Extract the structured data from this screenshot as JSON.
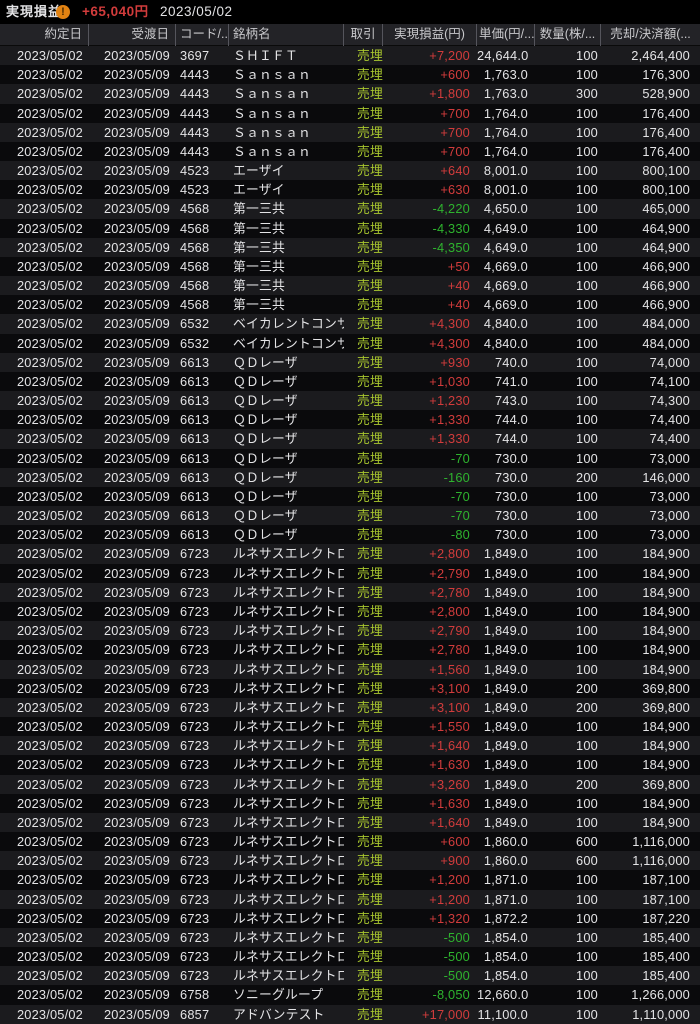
{
  "topbar": {
    "title": "実現損益",
    "warning_icon": "exclamation-circle-icon",
    "warning_glyph": "!",
    "total_pl": "+65,040円",
    "date": "2023/05/02"
  },
  "colors": {
    "positive": "#d23c3c",
    "negative": "#2eb32e",
    "trade_label": "#a8c62e",
    "warning": "#e28312",
    "header_bg": "#232327",
    "row_odd": "#1b1b1e",
    "row_even": "#0a0a0c"
  },
  "table": {
    "columns": [
      {
        "key": "trade_date",
        "label": "約定日"
      },
      {
        "key": "settle_date",
        "label": "受渡日"
      },
      {
        "key": "code",
        "label": "コード/..."
      },
      {
        "key": "name",
        "label": "銘柄名"
      },
      {
        "key": "trade",
        "label": "取引"
      },
      {
        "key": "realized_pl",
        "label": "実現損益(円)"
      },
      {
        "key": "unit_price",
        "label": "単価(円/..."
      },
      {
        "key": "quantity",
        "label": "数量(株/..."
      },
      {
        "key": "amount",
        "label": "売却/決済額(..."
      }
    ],
    "rows": [
      [
        "2023/05/02",
        "2023/05/09",
        "3697",
        "ＳＨＩＦＴ",
        "売埋",
        "+7,200",
        "24,644.0",
        "100",
        "2,464,400"
      ],
      [
        "2023/05/02",
        "2023/05/09",
        "4443",
        "Ｓａｎｓａｎ",
        "売埋",
        "+600",
        "1,763.0",
        "100",
        "176,300"
      ],
      [
        "2023/05/02",
        "2023/05/09",
        "4443",
        "Ｓａｎｓａｎ",
        "売埋",
        "+1,800",
        "1,763.0",
        "300",
        "528,900"
      ],
      [
        "2023/05/02",
        "2023/05/09",
        "4443",
        "Ｓａｎｓａｎ",
        "売埋",
        "+700",
        "1,764.0",
        "100",
        "176,400"
      ],
      [
        "2023/05/02",
        "2023/05/09",
        "4443",
        "Ｓａｎｓａｎ",
        "売埋",
        "+700",
        "1,764.0",
        "100",
        "176,400"
      ],
      [
        "2023/05/02",
        "2023/05/09",
        "4443",
        "Ｓａｎｓａｎ",
        "売埋",
        "+700",
        "1,764.0",
        "100",
        "176,400"
      ],
      [
        "2023/05/02",
        "2023/05/09",
        "4523",
        "エーザイ",
        "売埋",
        "+640",
        "8,001.0",
        "100",
        "800,100"
      ],
      [
        "2023/05/02",
        "2023/05/09",
        "4523",
        "エーザイ",
        "売埋",
        "+630",
        "8,001.0",
        "100",
        "800,100"
      ],
      [
        "2023/05/02",
        "2023/05/09",
        "4568",
        "第一三共",
        "売埋",
        "-4,220",
        "4,650.0",
        "100",
        "465,000"
      ],
      [
        "2023/05/02",
        "2023/05/09",
        "4568",
        "第一三共",
        "売埋",
        "-4,330",
        "4,649.0",
        "100",
        "464,900"
      ],
      [
        "2023/05/02",
        "2023/05/09",
        "4568",
        "第一三共",
        "売埋",
        "-4,350",
        "4,649.0",
        "100",
        "464,900"
      ],
      [
        "2023/05/02",
        "2023/05/09",
        "4568",
        "第一三共",
        "売埋",
        "+50",
        "4,669.0",
        "100",
        "466,900"
      ],
      [
        "2023/05/02",
        "2023/05/09",
        "4568",
        "第一三共",
        "売埋",
        "+40",
        "4,669.0",
        "100",
        "466,900"
      ],
      [
        "2023/05/02",
        "2023/05/09",
        "4568",
        "第一三共",
        "売埋",
        "+40",
        "4,669.0",
        "100",
        "466,900"
      ],
      [
        "2023/05/02",
        "2023/05/09",
        "6532",
        "ベイカレントコンサルティ...",
        "売埋",
        "+4,300",
        "4,840.0",
        "100",
        "484,000"
      ],
      [
        "2023/05/02",
        "2023/05/09",
        "6532",
        "ベイカレントコンサルティ...",
        "売埋",
        "+4,300",
        "4,840.0",
        "100",
        "484,000"
      ],
      [
        "2023/05/02",
        "2023/05/09",
        "6613",
        "ＱＤレーザ",
        "売埋",
        "+930",
        "740.0",
        "100",
        "74,000"
      ],
      [
        "2023/05/02",
        "2023/05/09",
        "6613",
        "ＱＤレーザ",
        "売埋",
        "+1,030",
        "741.0",
        "100",
        "74,100"
      ],
      [
        "2023/05/02",
        "2023/05/09",
        "6613",
        "ＱＤレーザ",
        "売埋",
        "+1,230",
        "743.0",
        "100",
        "74,300"
      ],
      [
        "2023/05/02",
        "2023/05/09",
        "6613",
        "ＱＤレーザ",
        "売埋",
        "+1,330",
        "744.0",
        "100",
        "74,400"
      ],
      [
        "2023/05/02",
        "2023/05/09",
        "6613",
        "ＱＤレーザ",
        "売埋",
        "+1,330",
        "744.0",
        "100",
        "74,400"
      ],
      [
        "2023/05/02",
        "2023/05/09",
        "6613",
        "ＱＤレーザ",
        "売埋",
        "-70",
        "730.0",
        "100",
        "73,000"
      ],
      [
        "2023/05/02",
        "2023/05/09",
        "6613",
        "ＱＤレーザ",
        "売埋",
        "-160",
        "730.0",
        "200",
        "146,000"
      ],
      [
        "2023/05/02",
        "2023/05/09",
        "6613",
        "ＱＤレーザ",
        "売埋",
        "-70",
        "730.0",
        "100",
        "73,000"
      ],
      [
        "2023/05/02",
        "2023/05/09",
        "6613",
        "ＱＤレーザ",
        "売埋",
        "-70",
        "730.0",
        "100",
        "73,000"
      ],
      [
        "2023/05/02",
        "2023/05/09",
        "6613",
        "ＱＤレーザ",
        "売埋",
        "-80",
        "730.0",
        "100",
        "73,000"
      ],
      [
        "2023/05/02",
        "2023/05/09",
        "6723",
        "ルネサスエレクトロニクス",
        "売埋",
        "+2,800",
        "1,849.0",
        "100",
        "184,900"
      ],
      [
        "2023/05/02",
        "2023/05/09",
        "6723",
        "ルネサスエレクトロニクス",
        "売埋",
        "+2,790",
        "1,849.0",
        "100",
        "184,900"
      ],
      [
        "2023/05/02",
        "2023/05/09",
        "6723",
        "ルネサスエレクトロニクス",
        "売埋",
        "+2,780",
        "1,849.0",
        "100",
        "184,900"
      ],
      [
        "2023/05/02",
        "2023/05/09",
        "6723",
        "ルネサスエレクトロニクス",
        "売埋",
        "+2,800",
        "1,849.0",
        "100",
        "184,900"
      ],
      [
        "2023/05/02",
        "2023/05/09",
        "6723",
        "ルネサスエレクトロニクス",
        "売埋",
        "+2,790",
        "1,849.0",
        "100",
        "184,900"
      ],
      [
        "2023/05/02",
        "2023/05/09",
        "6723",
        "ルネサスエレクトロニクス",
        "売埋",
        "+2,780",
        "1,849.0",
        "100",
        "184,900"
      ],
      [
        "2023/05/02",
        "2023/05/09",
        "6723",
        "ルネサスエレクトロニクス",
        "売埋",
        "+1,560",
        "1,849.0",
        "100",
        "184,900"
      ],
      [
        "2023/05/02",
        "2023/05/09",
        "6723",
        "ルネサスエレクトロニクス",
        "売埋",
        "+3,100",
        "1,849.0",
        "200",
        "369,800"
      ],
      [
        "2023/05/02",
        "2023/05/09",
        "6723",
        "ルネサスエレクトロニクス",
        "売埋",
        "+3,100",
        "1,849.0",
        "200",
        "369,800"
      ],
      [
        "2023/05/02",
        "2023/05/09",
        "6723",
        "ルネサスエレクトロニクス",
        "売埋",
        "+1,550",
        "1,849.0",
        "100",
        "184,900"
      ],
      [
        "2023/05/02",
        "2023/05/09",
        "6723",
        "ルネサスエレクトロニクス",
        "売埋",
        "+1,640",
        "1,849.0",
        "100",
        "184,900"
      ],
      [
        "2023/05/02",
        "2023/05/09",
        "6723",
        "ルネサスエレクトロニクス",
        "売埋",
        "+1,630",
        "1,849.0",
        "100",
        "184,900"
      ],
      [
        "2023/05/02",
        "2023/05/09",
        "6723",
        "ルネサスエレクトロニクス",
        "売埋",
        "+3,260",
        "1,849.0",
        "200",
        "369,800"
      ],
      [
        "2023/05/02",
        "2023/05/09",
        "6723",
        "ルネサスエレクトロニクス",
        "売埋",
        "+1,630",
        "1,849.0",
        "100",
        "184,900"
      ],
      [
        "2023/05/02",
        "2023/05/09",
        "6723",
        "ルネサスエレクトロニクス",
        "売埋",
        "+1,640",
        "1,849.0",
        "100",
        "184,900"
      ],
      [
        "2023/05/02",
        "2023/05/09",
        "6723",
        "ルネサスエレクトロニクス",
        "売埋",
        "+600",
        "1,860.0",
        "600",
        "1,116,000"
      ],
      [
        "2023/05/02",
        "2023/05/09",
        "6723",
        "ルネサスエレクトロニクス",
        "売埋",
        "+900",
        "1,860.0",
        "600",
        "1,116,000"
      ],
      [
        "2023/05/02",
        "2023/05/09",
        "6723",
        "ルネサスエレクトロニクス",
        "売埋",
        "+1,200",
        "1,871.0",
        "100",
        "187,100"
      ],
      [
        "2023/05/02",
        "2023/05/09",
        "6723",
        "ルネサスエレクトロニクス",
        "売埋",
        "+1,200",
        "1,871.0",
        "100",
        "187,100"
      ],
      [
        "2023/05/02",
        "2023/05/09",
        "6723",
        "ルネサスエレクトロニクス",
        "売埋",
        "+1,320",
        "1,872.2",
        "100",
        "187,220"
      ],
      [
        "2023/05/02",
        "2023/05/09",
        "6723",
        "ルネサスエレクトロニクス",
        "売埋",
        "-500",
        "1,854.0",
        "100",
        "185,400"
      ],
      [
        "2023/05/02",
        "2023/05/09",
        "6723",
        "ルネサスエレクトロニクス",
        "売埋",
        "-500",
        "1,854.0",
        "100",
        "185,400"
      ],
      [
        "2023/05/02",
        "2023/05/09",
        "6723",
        "ルネサスエレクトロニクス",
        "売埋",
        "-500",
        "1,854.0",
        "100",
        "185,400"
      ],
      [
        "2023/05/02",
        "2023/05/09",
        "6758",
        "ソニーグループ",
        "売埋",
        "-8,050",
        "12,660.0",
        "100",
        "1,266,000"
      ],
      [
        "2023/05/02",
        "2023/05/09",
        "6857",
        "アドバンテスト",
        "売埋",
        "+17,000",
        "11,100.0",
        "100",
        "1,110,000"
      ]
    ]
  }
}
